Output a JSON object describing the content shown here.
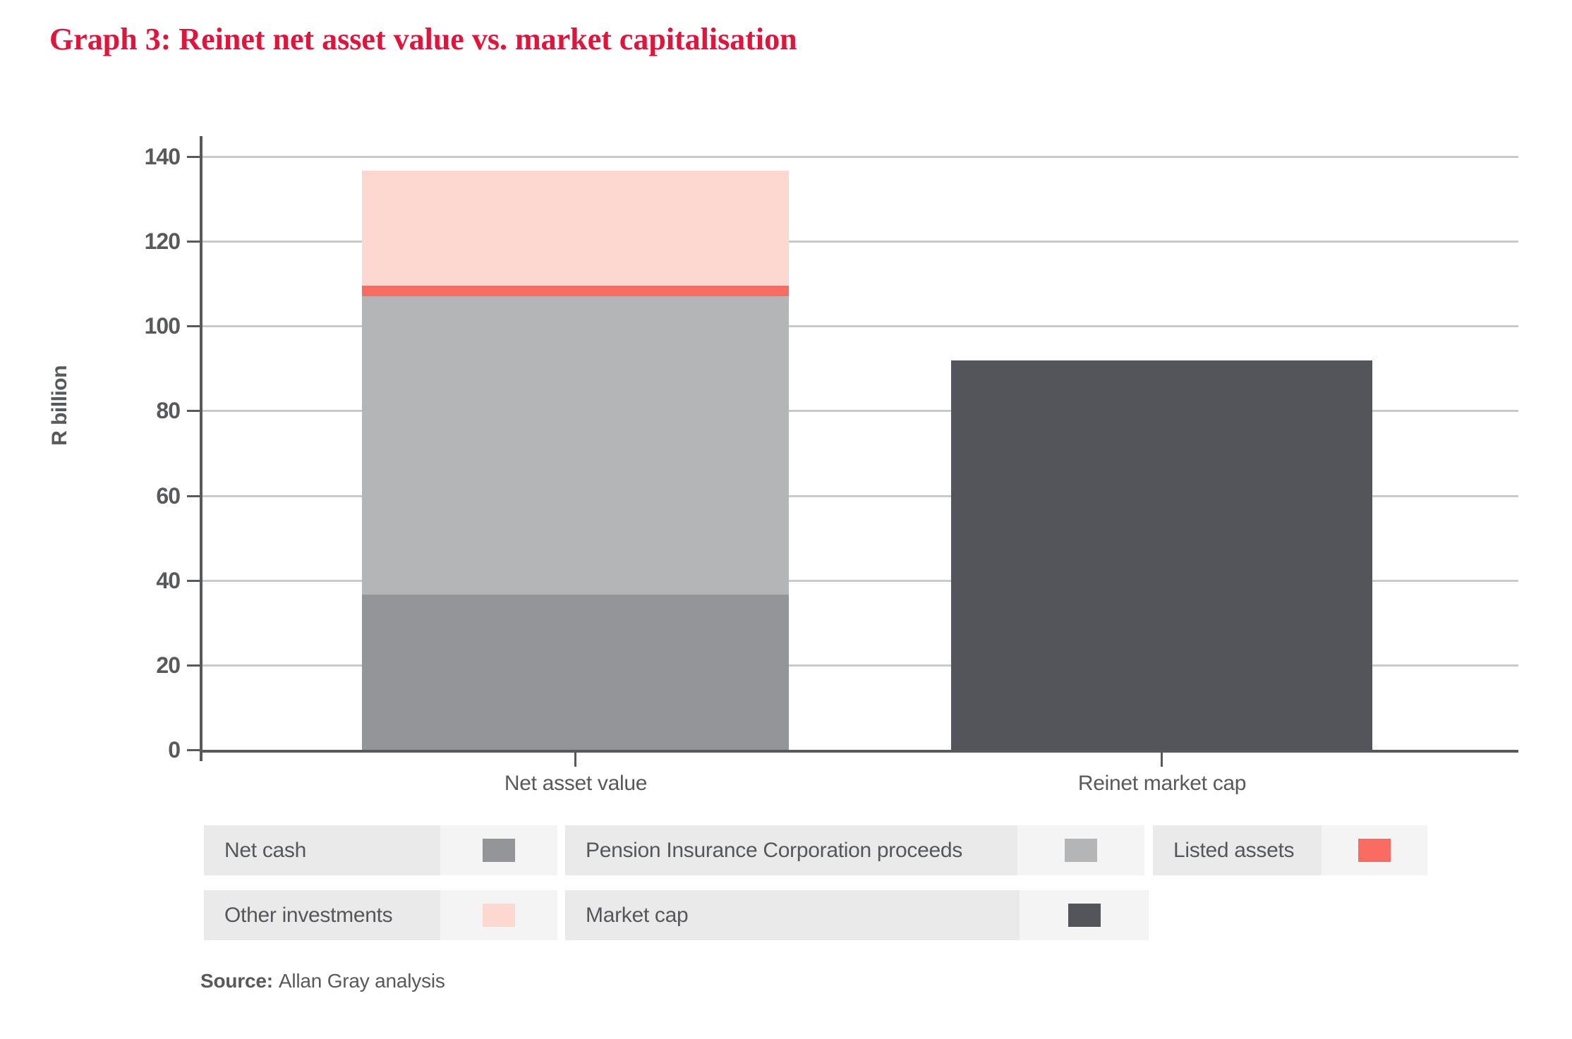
{
  "title": "Graph 3: Reinet net asset value vs. market capitalisation",
  "colors": {
    "title_red": "#e1143c",
    "axis_text": "#58595b",
    "axis_line": "#58595b",
    "gridline": "#c9cacb",
    "legend_label_cell_bg": "#eaeaeb",
    "legend_swatch_cell_bg": "#f4f4f5",
    "background": "#ffffff"
  },
  "chart_data": {
    "type": "bar",
    "stacked": true,
    "title": "Graph 3: Reinet net asset value vs. market capitalisation",
    "ylabel": "R billion",
    "xlabel": "",
    "ylim": [
      0,
      140
    ],
    "yticks": [
      0,
      20,
      40,
      60,
      80,
      100,
      120,
      140
    ],
    "ytick_labels": [
      "0",
      "20",
      "40",
      "60",
      "80",
      "100",
      "120",
      "140"
    ],
    "grid": true,
    "legend_position": "below",
    "categories": [
      "Net asset value",
      "Reinet market cap"
    ],
    "series": [
      {
        "name": "Net cash",
        "color": "#949599",
        "values": [
          36.6,
          0
        ]
      },
      {
        "name": "Pension Insurance Corporation proceeds",
        "color": "#b4b5b7",
        "values": [
          70.5,
          0
        ]
      },
      {
        "name": "Listed assets",
        "color": "#fa6b61",
        "values": [
          2.4,
          0
        ]
      },
      {
        "name": "Other investments",
        "color": "#fcd8d0",
        "values": [
          27.2,
          0
        ]
      },
      {
        "name": "Market cap",
        "color": "#54555a",
        "values": [
          0,
          91.9
        ]
      }
    ],
    "totals": {
      "net_asset_value": 136.7,
      "reinet_market_cap": 91.9
    }
  },
  "legend": {
    "rows": [
      {
        "items": [
          {
            "label": "Net cash",
            "color": "#949599"
          },
          {
            "label": "Pension Insurance Corporation proceeds",
            "color": "#b4b5b7"
          },
          {
            "label": "Listed assets",
            "color": "#fa6b61"
          }
        ]
      },
      {
        "items": [
          {
            "label": "Other investments",
            "color": "#fcd8d0"
          },
          {
            "label": "Market cap",
            "color": "#54555a"
          }
        ]
      }
    ]
  },
  "source": {
    "prefix": "Source:",
    "text": "Allan Gray analysis"
  }
}
